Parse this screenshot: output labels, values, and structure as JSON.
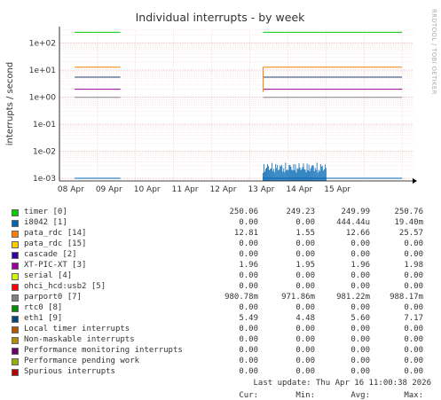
{
  "chart_data": {
    "type": "line",
    "title": "Individual interrupts - by week",
    "ylabel": "interrupts / second",
    "side_label": "RRDTOOL / TOBI OETIKER",
    "y_scale": "log",
    "ylim": [
      0.0008,
      300
    ],
    "y_ticks": [
      "1e-03",
      "1e-02",
      "1e-01",
      "1e+00",
      "1e+01",
      "1e+02"
    ],
    "x_ticks": [
      "08 Apr",
      "09 Apr",
      "10 Apr",
      "11 Apr",
      "12 Apr",
      "13 Apr",
      "14 Apr",
      "15 Apr"
    ],
    "xlim": [
      0,
      9.3
    ],
    "gaps": [
      [
        1.6,
        5.35
      ]
    ],
    "series": [
      {
        "name": "timer [0]",
        "color": "#00cc00",
        "value": 250.06
      },
      {
        "name": "i8042 [1]",
        "color": "#0066b3",
        "value": 0.001,
        "spikes": [
          5.35,
          7.0
        ]
      },
      {
        "name": "pata_rdc [14]",
        "color": "#ff8000",
        "value": 12.81
      },
      {
        "name": "eth1 [9]",
        "color": "#1f3d6b",
        "value": 5.49
      },
      {
        "name": "XT-PIC-XT [3]",
        "color": "#990099",
        "value": 1.96
      },
      {
        "name": "parport0 [7]",
        "color": "#888888",
        "value": 0.98078
      }
    ],
    "legend_header": [
      "Cur:",
      "Min:",
      "Avg:",
      "Max:"
    ],
    "legend": [
      {
        "name": "timer [0]",
        "color": "#00cc00",
        "cur": "250.06",
        "min": "249.23",
        "avg": "249.99",
        "max": "250.76"
      },
      {
        "name": "i8042 [1]",
        "color": "#0066b3",
        "cur": "0.00",
        "min": "0.00",
        "avg": "444.44u",
        "max": "19.40m"
      },
      {
        "name": "pata_rdc [14]",
        "color": "#ff8000",
        "cur": "12.81",
        "min": "1.55",
        "avg": "12.66",
        "max": "25.57"
      },
      {
        "name": "pata_rdc [15]",
        "color": "#ffcc00",
        "cur": "0.00",
        "min": "0.00",
        "avg": "0.00",
        "max": "0.00"
      },
      {
        "name": "cascade [2]",
        "color": "#330099",
        "cur": "0.00",
        "min": "0.00",
        "avg": "0.00",
        "max": "0.00"
      },
      {
        "name": "XT-PIC-XT [3]",
        "color": "#990099",
        "cur": "1.96",
        "min": "1.95",
        "avg": "1.96",
        "max": "1.98"
      },
      {
        "name": "serial [4]",
        "color": "#ccff00",
        "cur": "0.00",
        "min": "0.00",
        "avg": "0.00",
        "max": "0.00"
      },
      {
        "name": "ohci_hcd:usb2 [5]",
        "color": "#ff0000",
        "cur": "0.00",
        "min": "0.00",
        "avg": "0.00",
        "max": "0.00"
      },
      {
        "name": "parport0 [7]",
        "color": "#808080",
        "cur": "980.78m",
        "min": "971.86m",
        "avg": "981.22m",
        "max": "988.17m"
      },
      {
        "name": "rtc0 [8]",
        "color": "#008f00",
        "cur": "0.00",
        "min": "0.00",
        "avg": "0.00",
        "max": "0.00"
      },
      {
        "name": "eth1 [9]",
        "color": "#00487d",
        "cur": "5.49",
        "min": "4.48",
        "avg": "5.60",
        "max": "7.17"
      },
      {
        "name": "Local timer interrupts",
        "color": "#b35a00",
        "cur": "0.00",
        "min": "0.00",
        "avg": "0.00",
        "max": "0.00"
      },
      {
        "name": "Non-maskable interrupts",
        "color": "#b38f00",
        "cur": "0.00",
        "min": "0.00",
        "avg": "0.00",
        "max": "0.00"
      },
      {
        "name": "Performance monitoring interrupts",
        "color": "#6b006b",
        "cur": "0.00",
        "min": "0.00",
        "avg": "0.00",
        "max": "0.00"
      },
      {
        "name": "Performance pending work",
        "color": "#8fb300",
        "cur": "0.00",
        "min": "0.00",
        "avg": "0.00",
        "max": "0.00"
      },
      {
        "name": "Spurious interrupts",
        "color": "#b30000",
        "cur": "0.00",
        "min": "0.00",
        "avg": "0.00",
        "max": "0.00"
      }
    ],
    "last_update": "Last update: Thu Apr 16 11:00:38 2026"
  }
}
